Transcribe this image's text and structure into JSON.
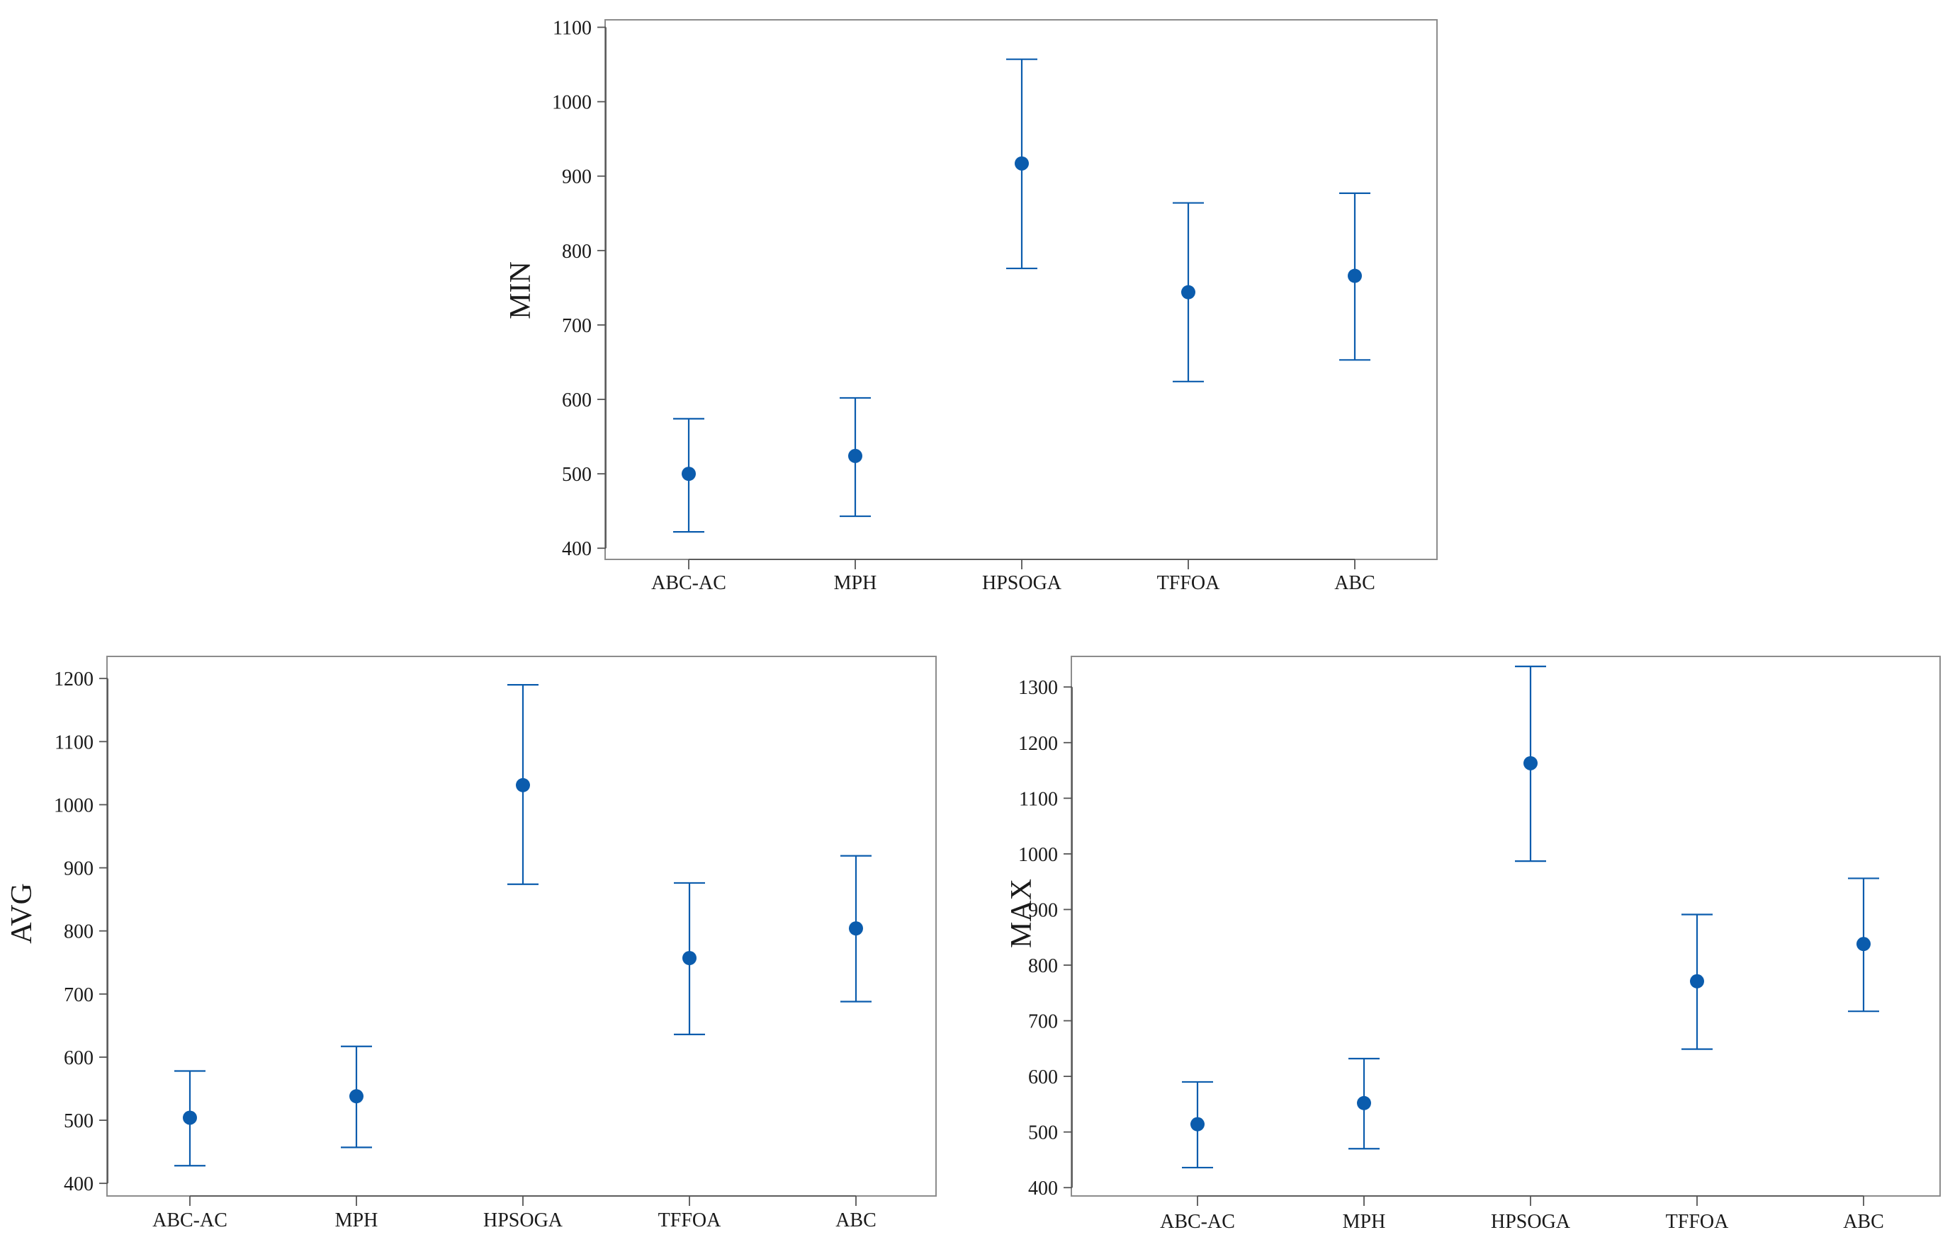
{
  "chart_data": [
    {
      "type": "errorbar",
      "id": "min",
      "ylabel": "MIN",
      "categories": [
        "ABC-AC",
        "MPH",
        "HPSOGA",
        "TFFOA",
        "ABC"
      ],
      "ylim": [
        385,
        1110
      ],
      "yticks": [
        400,
        500,
        600,
        700,
        800,
        900,
        1000,
        1100
      ],
      "mean": [
        500,
        524,
        917,
        744,
        766
      ],
      "lower": [
        422,
        443,
        776,
        624,
        653
      ],
      "upper": [
        574,
        602,
        1057,
        864,
        877
      ],
      "color": "#0b5cad"
    },
    {
      "type": "errorbar",
      "id": "avg",
      "ylabel": "AVG",
      "categories": [
        "ABC-AC",
        "MPH",
        "HPSOGA",
        "TFFOA",
        "ABC"
      ],
      "ylim": [
        380,
        1235
      ],
      "yticks": [
        400,
        500,
        600,
        700,
        800,
        900,
        1000,
        1100,
        1200
      ],
      "mean": [
        504,
        538,
        1031,
        757,
        804
      ],
      "lower": [
        428,
        457,
        874,
        636,
        688
      ],
      "upper": [
        578,
        617,
        1190,
        876,
        919
      ],
      "color": "#0b5cad"
    },
    {
      "type": "errorbar",
      "id": "max",
      "ylabel": "MAX",
      "categories": [
        "ABC-AC",
        "MPH",
        "HPSOGA",
        "TFFOA",
        "ABC"
      ],
      "ylim": [
        385,
        1355
      ],
      "yticks": [
        400,
        500,
        600,
        700,
        800,
        900,
        1000,
        1100,
        1200,
        1300
      ],
      "mean": [
        514,
        552,
        1163,
        771,
        838
      ],
      "lower": [
        436,
        470,
        987,
        649,
        717
      ],
      "upper": [
        590,
        632,
        1337,
        891,
        956
      ],
      "color": "#0b5cad"
    }
  ]
}
